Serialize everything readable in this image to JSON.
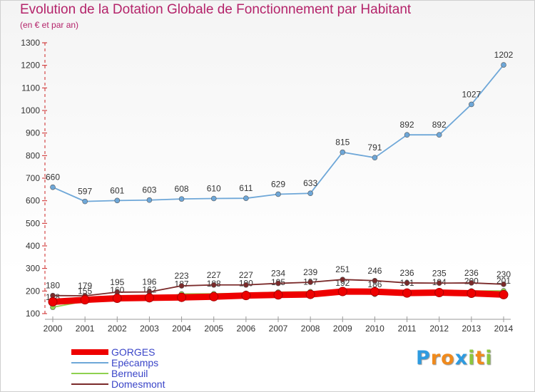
{
  "title": "Evolution de la Dotation Globale de Fonctionnement par Habitant",
  "subtitle": "(en € et par an)",
  "brand": {
    "text": "Proxiti",
    "letters": [
      "P",
      "r",
      "o",
      "x",
      "i",
      "t",
      "i"
    ],
    "colors": [
      "#2e9be0",
      "#f08a1c",
      "#f08a1c",
      "#2e9be0",
      "#8cc63f",
      "#f08a1c",
      "#8cc63f"
    ]
  },
  "chart_data": {
    "type": "line",
    "title": "Evolution de la Dotation Globale de Fonctionnement par Habitant",
    "subtitle": "(en € et par an)",
    "xlabel": "",
    "ylabel": "",
    "x": [
      "2000",
      "2001",
      "2002",
      "2003",
      "2004",
      "2005",
      "2006",
      "2007",
      "2008",
      "2009",
      "2010",
      "2011",
      "2012",
      "2013",
      "2014"
    ],
    "ylim": [
      100,
      1300
    ],
    "yticks": [
      100,
      200,
      300,
      400,
      500,
      600,
      700,
      800,
      900,
      1000,
      1100,
      1200,
      1300
    ],
    "grid": false,
    "legend_position": "bottom-left",
    "series": [
      {
        "name": "GORGES",
        "color": "#ee0000",
        "values": [
          152,
          161,
          168,
          170,
          172,
          175,
          180,
          183,
          185,
          198,
          197,
          191,
          193,
          190,
          184
        ],
        "show_labels": false
      },
      {
        "name": "Epécamps",
        "color": "#6ea7d8",
        "values": [
          660,
          597,
          601,
          603,
          608,
          610,
          611,
          629,
          633,
          815,
          791,
          892,
          892,
          1027,
          1202
        ],
        "show_labels": true
      },
      {
        "name": "Berneuil",
        "color": "#8fd14f",
        "values": [
          128,
          155,
          160,
          162,
          187,
          188,
          190,
          195,
          197,
          192,
          186,
          191,
          194,
          200,
          201
        ],
        "show_labels": true
      },
      {
        "name": "Domesmont",
        "color": "#7a2a2a",
        "values": [
          180,
          179,
          195,
          196,
          223,
          227,
          227,
          234,
          239,
          251,
          246,
          236,
          235,
          236,
          230
        ],
        "show_labels": true
      }
    ]
  }
}
